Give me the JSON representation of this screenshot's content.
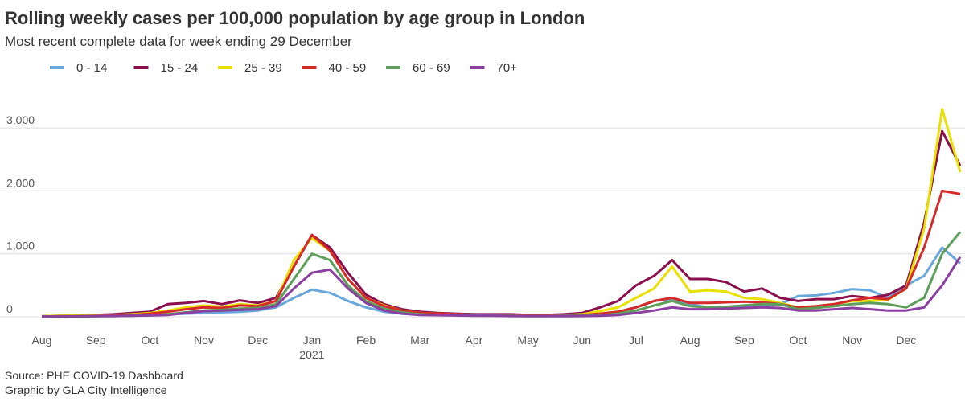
{
  "chart_data": {
    "type": "line",
    "title": "Rolling weekly cases per 100,000 population by age group in London",
    "subtitle": "Most recent complete data for week ending 29 December",
    "source": "Source: PHE COVID-19 Dashboard",
    "credit": "Graphic by GLA City Intelligence",
    "categories": [
      "Aug",
      null,
      null,
      "Sep",
      null,
      null,
      "Oct",
      null,
      null,
      "Nov",
      null,
      null,
      "Dec",
      null,
      null,
      "Jan\n2021",
      null,
      null,
      "Feb",
      null,
      null,
      "Mar",
      null,
      null,
      "Apr",
      null,
      null,
      "May",
      null,
      null,
      "Jun",
      null,
      null,
      "Jul",
      null,
      null,
      "Aug",
      null,
      null,
      "Sep",
      null,
      null,
      "Oct",
      null,
      null,
      "Nov",
      null,
      null,
      "Dec",
      null,
      null,
      null
    ],
    "ylim": [
      0,
      3500
    ],
    "yticks": [
      0,
      {
        "value": 1000,
        "label": "1,000"
      },
      {
        "value": 2000,
        "label": "2,000"
      },
      {
        "value": 3000,
        "label": "3,000"
      }
    ],
    "grid": true,
    "legend": "top",
    "series": [
      {
        "name": "0 - 14",
        "color": "#6aa8dc",
        "values": [
          5,
          5,
          8,
          10,
          15,
          20,
          30,
          40,
          50,
          60,
          70,
          80,
          100,
          150,
          300,
          430,
          380,
          250,
          150,
          80,
          50,
          40,
          40,
          30,
          20,
          20,
          20,
          20,
          20,
          20,
          25,
          40,
          80,
          150,
          250,
          280,
          200,
          150,
          130,
          150,
          180,
          200,
          330,
          340,
          380,
          440,
          420,
          300,
          500,
          650,
          1100,
          850
        ]
      },
      {
        "name": "15 - 24",
        "color": "#8b0f4e",
        "values": [
          10,
          15,
          20,
          30,
          40,
          60,
          80,
          200,
          220,
          250,
          200,
          260,
          220,
          300,
          800,
          1300,
          1100,
          700,
          350,
          200,
          120,
          80,
          60,
          50,
          40,
          40,
          40,
          30,
          30,
          40,
          60,
          150,
          250,
          500,
          650,
          900,
          600,
          600,
          550,
          400,
          450,
          300,
          250,
          280,
          280,
          330,
          300,
          350,
          500,
          1500,
          2950,
          2400
        ]
      },
      {
        "name": "25 - 39",
        "color": "#e8e000",
        "values": [
          10,
          15,
          20,
          25,
          30,
          40,
          60,
          100,
          150,
          180,
          160,
          200,
          180,
          250,
          900,
          1250,
          1050,
          600,
          300,
          180,
          100,
          60,
          50,
          40,
          30,
          30,
          30,
          25,
          25,
          30,
          40,
          90,
          150,
          300,
          450,
          800,
          400,
          420,
          400,
          300,
          280,
          220,
          150,
          170,
          200,
          250,
          250,
          270,
          450,
          1400,
          3300,
          2300
        ]
      },
      {
        "name": "40 - 59",
        "color": "#d62a2a",
        "values": [
          5,
          8,
          10,
          15,
          20,
          30,
          50,
          80,
          120,
          150,
          140,
          180,
          170,
          250,
          800,
          1300,
          1050,
          600,
          300,
          170,
          100,
          60,
          50,
          40,
          30,
          25,
          25,
          20,
          20,
          25,
          30,
          50,
          80,
          150,
          250,
          300,
          220,
          220,
          230,
          240,
          230,
          200,
          150,
          170,
          200,
          260,
          300,
          280,
          450,
          1100,
          2000,
          1950
        ]
      },
      {
        "name": "60 - 69",
        "color": "#5c9e5a",
        "values": [
          3,
          5,
          8,
          10,
          12,
          15,
          25,
          40,
          70,
          100,
          110,
          130,
          140,
          200,
          600,
          1000,
          900,
          500,
          250,
          130,
          70,
          40,
          30,
          25,
          20,
          15,
          15,
          12,
          12,
          15,
          15,
          25,
          50,
          100,
          180,
          250,
          170,
          150,
          160,
          180,
          200,
          200,
          120,
          140,
          170,
          200,
          220,
          200,
          150,
          300,
          1000,
          1350
        ]
      },
      {
        "name": "70+",
        "color": "#8b3fa0",
        "values": [
          3,
          5,
          8,
          10,
          12,
          15,
          20,
          30,
          60,
          90,
          100,
          110,
          120,
          170,
          450,
          700,
          750,
          450,
          220,
          100,
          50,
          30,
          25,
          20,
          15,
          15,
          12,
          10,
          10,
          10,
          12,
          15,
          30,
          60,
          100,
          150,
          120,
          120,
          130,
          140,
          150,
          140,
          100,
          100,
          120,
          140,
          120,
          100,
          100,
          150,
          500,
          950
        ]
      }
    ]
  }
}
